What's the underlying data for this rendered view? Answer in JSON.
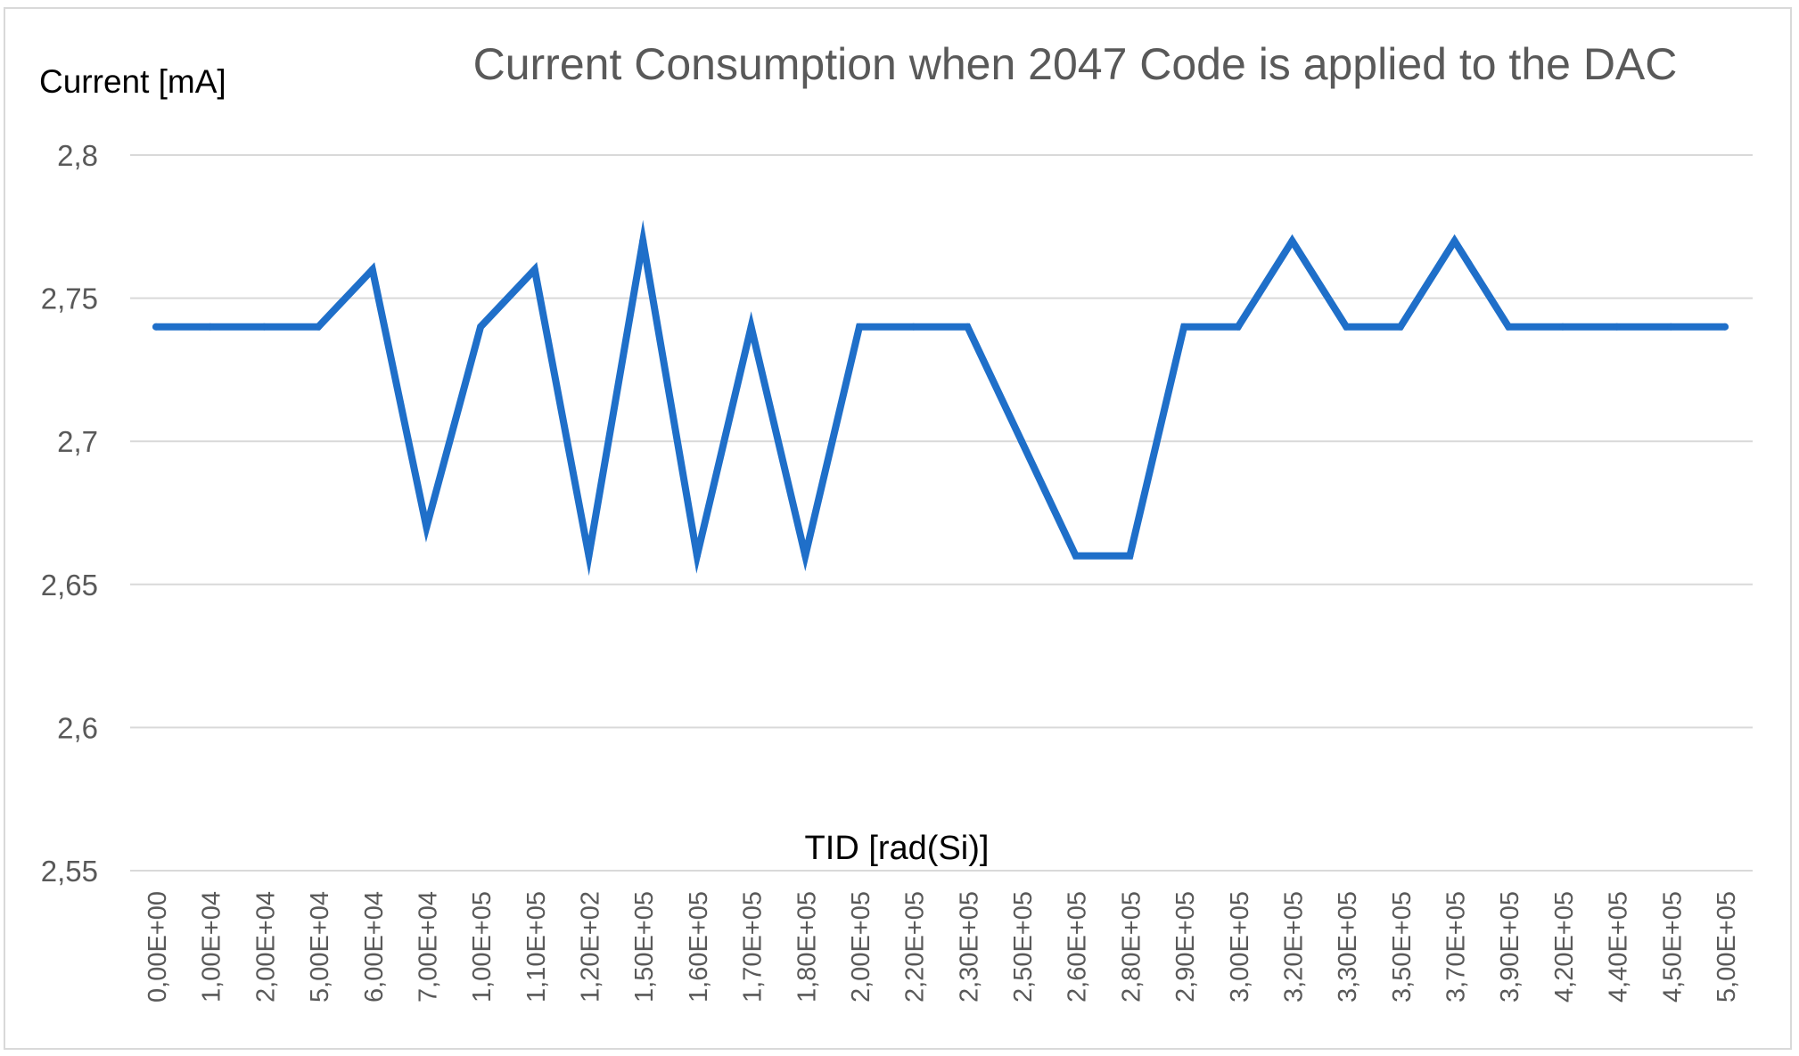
{
  "chart_data": {
    "type": "line",
    "title": "Current Consumption when 2047 Code is applied to the DAC",
    "ylabel": "Current [mA]",
    "xlabel": "TID [rad(Si)]",
    "ylim": [
      2.55,
      2.8
    ],
    "yticks": [
      2.55,
      2.6,
      2.65,
      2.7,
      2.75,
      2.8
    ],
    "ytick_labels": [
      "2,55",
      "2,6",
      "2,65",
      "2,7",
      "2,75",
      "2,8"
    ],
    "grid": true,
    "legend": "none",
    "categories": [
      "0,00E+00",
      "1,00E+04",
      "2,00E+04",
      "5,00E+04",
      "6,00E+04",
      "7,00E+04",
      "1,00E+05",
      "1,10E+05",
      "1,20E+02",
      "1,50E+05",
      "1,60E+05",
      "1,70E+05",
      "1,80E+05",
      "2,00E+05",
      "2,20E+05",
      "2,30E+05",
      "2,50E+05",
      "2,60E+05",
      "2,80E+05",
      "2,90E+05",
      "3,00E+05",
      "3,20E+05",
      "3,30E+05",
      "3,50E+05",
      "3,70E+05",
      "3,90E+05",
      "4,20E+05",
      "4,40E+05",
      "4,50E+05",
      "5,00E+05"
    ],
    "series": [
      {
        "name": "Current",
        "color": "#1f6fc9",
        "values": [
          2.74,
          2.74,
          2.74,
          2.74,
          2.76,
          2.67,
          2.74,
          2.76,
          2.66,
          2.77,
          2.66,
          2.74,
          2.66,
          2.74,
          2.74,
          2.74,
          2.7,
          2.66,
          2.66,
          2.74,
          2.74,
          2.77,
          2.74,
          2.74,
          2.77,
          2.74,
          2.74,
          2.74,
          2.74,
          2.74
        ]
      }
    ]
  }
}
